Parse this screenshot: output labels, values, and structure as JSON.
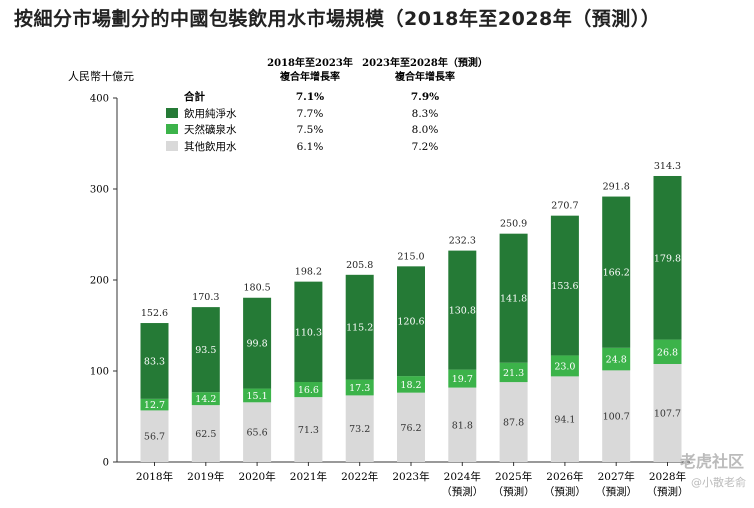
{
  "title": "按細分市場劃分的中國包裝飲用水市場規模（2018年至2028年（預測））",
  "chart_data": {
    "type": "bar",
    "stacked": true,
    "ylabel": "人民幣十億元",
    "ylim": [
      0,
      400
    ],
    "yticks": [
      "0",
      "100",
      "200",
      "300",
      "400"
    ],
    "categories": [
      "2018年",
      "2019年",
      "2020年",
      "2021年",
      "2022年",
      "2023年",
      "2024年",
      "2025年",
      "2026年",
      "2027年",
      "2028年"
    ],
    "category_sub": [
      "",
      "",
      "",
      "",
      "",
      "",
      "（預測）",
      "（預測）",
      "（預測）",
      "（預測）",
      "（預測）"
    ],
    "series": [
      {
        "name": "其他飲用水",
        "color": "#d9d9d9",
        "values": [
          56.7,
          62.5,
          65.6,
          71.3,
          73.2,
          76.2,
          81.8,
          87.8,
          94.1,
          100.7,
          107.7
        ]
      },
      {
        "name": "天然礦泉水",
        "color": "#3cb34a",
        "values": [
          12.7,
          14.2,
          15.1,
          16.6,
          17.3,
          18.2,
          19.7,
          21.3,
          23.0,
          24.8,
          26.8
        ]
      },
      {
        "name": "飲用純淨水",
        "color": "#257a36",
        "values": [
          83.3,
          93.5,
          99.8,
          110.3,
          115.2,
          120.6,
          130.8,
          141.8,
          153.6,
          166.2,
          179.8
        ]
      }
    ],
    "labels": {
      "其他飲用水": [
        "56.7",
        "62.5",
        "65.6",
        "71.3",
        "73.2",
        "76.2",
        "81.8",
        "87.8",
        "94.1",
        "100.7",
        "107.7"
      ],
      "天然礦泉水": [
        "12.7",
        "14.2",
        "15.1",
        "16.6",
        "17.3",
        "18.2",
        "19.7",
        "21.3",
        "23.0",
        "24.8",
        "26.8"
      ],
      "飲用純淨水": [
        "83.3",
        "93.5",
        "99.8",
        "110.3",
        "115.2",
        "120.6",
        "130.8",
        "141.8",
        "153.6",
        "166.2",
        "179.8"
      ]
    },
    "totals": [
      "152.6",
      "170.3",
      "180.5",
      "198.2",
      "205.8",
      "215.0",
      "232.3",
      "250.9",
      "270.7",
      "291.8",
      "314.3"
    ],
    "cagr_table": {
      "header1": [
        "2018年至2023年",
        "複合年增長率"
      ],
      "header2": [
        "2023年至2028年（預測）",
        "複合年增長率"
      ],
      "rows": [
        {
          "label": "合計",
          "c1": "7.1%",
          "c2": "7.9%",
          "bold": true
        },
        {
          "label": "飲用純淨水",
          "c1": "7.7%",
          "c2": "8.3%",
          "color": "#257a36"
        },
        {
          "label": "天然礦泉水",
          "c1": "7.5%",
          "c2": "8.0%",
          "color": "#3cb34a"
        },
        {
          "label": "其他飲用水",
          "c1": "6.1%",
          "c2": "7.2%",
          "color": "#d9d9d9"
        }
      ]
    }
  },
  "watermark": "老虎社区",
  "watermark_sub": "@小散老俞"
}
